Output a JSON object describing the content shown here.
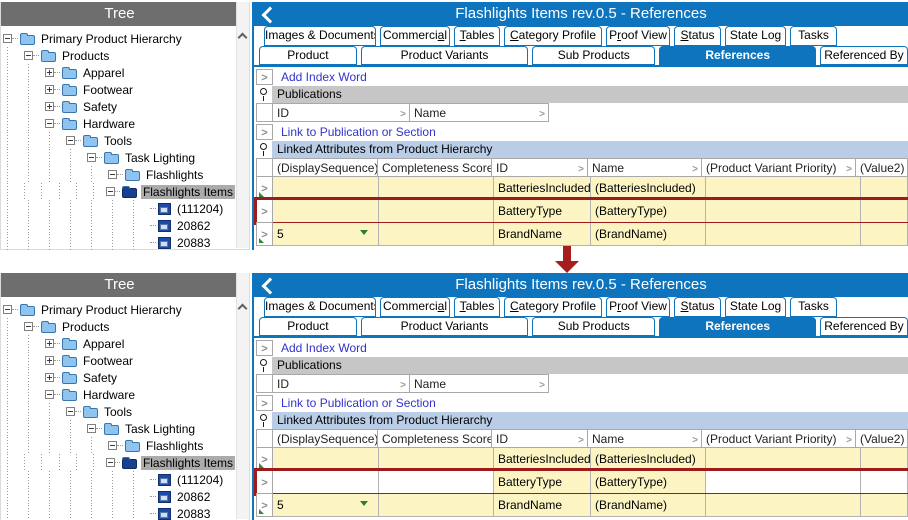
{
  "window": {
    "title": "Flashlights Items rev.0.5 - References"
  },
  "tree": {
    "title": "Tree",
    "items": [
      {
        "label": "Primary Product Hierarchy",
        "expanded": true
      },
      {
        "label": "Products",
        "expanded": true
      },
      {
        "label": "Apparel",
        "expanded": false
      },
      {
        "label": "Footwear",
        "expanded": false
      },
      {
        "label": "Safety",
        "expanded": false
      },
      {
        "label": "Hardware",
        "expanded": true
      },
      {
        "label": "Tools",
        "expanded": true
      },
      {
        "label": "Task Lighting",
        "expanded": true
      },
      {
        "label": "Flashlights",
        "expanded": true
      },
      {
        "label": "Flashlights Items",
        "expanded": true,
        "selected": true
      },
      {
        "label": "(111204)"
      },
      {
        "label": "20862"
      },
      {
        "label": "20883"
      }
    ]
  },
  "tabs_row1": [
    {
      "pre": "Images & Documents"
    },
    {
      "pre": "Commerci",
      "key": "a",
      "post": "l"
    },
    {
      "pre": "",
      "key": "T",
      "post": "ables"
    },
    {
      "pre": "",
      "key": "C",
      "post": "ategory Profile"
    },
    {
      "pre": "P",
      "key": "r",
      "post": "oof View"
    },
    {
      "pre": "",
      "key": "S",
      "post": "tatus"
    },
    {
      "pre": "State Log"
    },
    {
      "pre": "Tasks"
    }
  ],
  "tabs_row2": [
    {
      "label": "Product"
    },
    {
      "label": "Product Variants"
    },
    {
      "label": "Sub Products"
    },
    {
      "label": "References",
      "selected": true
    },
    {
      "label": "Referenced By"
    }
  ],
  "content": {
    "add_index_word": "Add Index Word",
    "publications": {
      "title": "Publications",
      "columns": [
        "ID",
        "Name"
      ]
    },
    "link_to_publication": "Link to Publication or Section",
    "linked_attributes": {
      "title": "Linked Attributes from Product Hierarchy",
      "columns": [
        "(DisplaySequence)",
        "Completeness Score",
        "ID",
        "Name",
        "(Product Variant Priority)",
        "(Value2)"
      ],
      "rows": [
        {
          "display_sequence": "",
          "completeness_score": "",
          "id": "BatteriesIncluded",
          "name": "(BatteriesIncluded)",
          "product_variant_priority": "",
          "value2": ""
        },
        {
          "display_sequence": "",
          "completeness_score": "",
          "id": "BatteryType",
          "name": "(BatteryType)",
          "product_variant_priority": "",
          "value2": "",
          "highlighted": true
        },
        {
          "display_sequence": "5",
          "completeness_score": "",
          "id": "BrandName",
          "name": "(BrandName)",
          "product_variant_priority": "",
          "value2": ""
        }
      ]
    }
  },
  "icons": {
    "back": "chevron-left",
    "scroll_up": "chevron-up",
    "section": "pin",
    "expander": "chevron-right",
    "sort": "chevron-right",
    "row_link": "chevron-right-with-green-arrow",
    "dropdown": "green-down-triangle",
    "between_panels": "red-down-arrow"
  },
  "colors": {
    "titlebar_blue": "#0e74bd",
    "tree_title_gray": "#6e6e6e",
    "row_yellow": "#fcf5c3",
    "highlight_border_red": "#9e1b1b",
    "publications_header_bg": "#c6c6c6",
    "linked_header_bg": "#b9cde7",
    "link_text_blue": "#3333cc",
    "transition_arrow_red": "#a51d1d"
  }
}
